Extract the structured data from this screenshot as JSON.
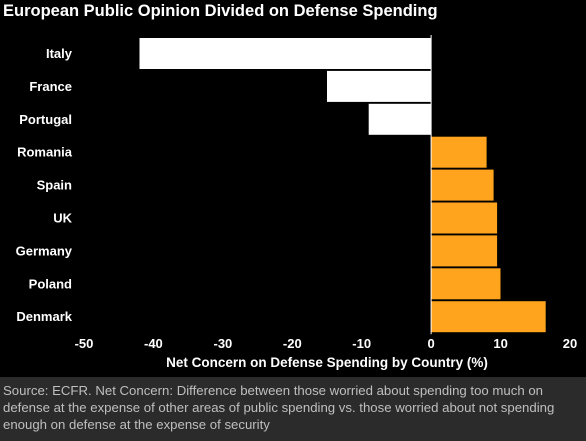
{
  "title": "European Public Opinion Divided on Defense Spending",
  "source": "Source: ECFR. Net Concern: Difference between those worried about spending too much on defense at the expense of other areas of public spending vs. those worried about not spending enough on defense at the expense of security",
  "colors": {
    "positive": "#ffa41c",
    "negative": "#ffffff",
    "background": "#000000",
    "footer": "#2b2b2b"
  },
  "chart_data": {
    "type": "bar",
    "orientation": "horizontal",
    "title": "European Public Opinion Divided on Defense Spending",
    "xlabel": "Net Concern on Defense Spending by Country (%)",
    "ylabel": "",
    "xlim": [
      -50,
      20
    ],
    "xticks": [
      -50,
      -40,
      -30,
      -20,
      -10,
      0,
      10,
      20
    ],
    "grid": false,
    "categories": [
      "Italy",
      "France",
      "Portugal",
      "Romania",
      "Spain",
      "UK",
      "Germany",
      "Poland",
      "Denmark"
    ],
    "values": [
      -42,
      -15,
      -9,
      8,
      9,
      9.5,
      9.5,
      10,
      16.5
    ]
  }
}
